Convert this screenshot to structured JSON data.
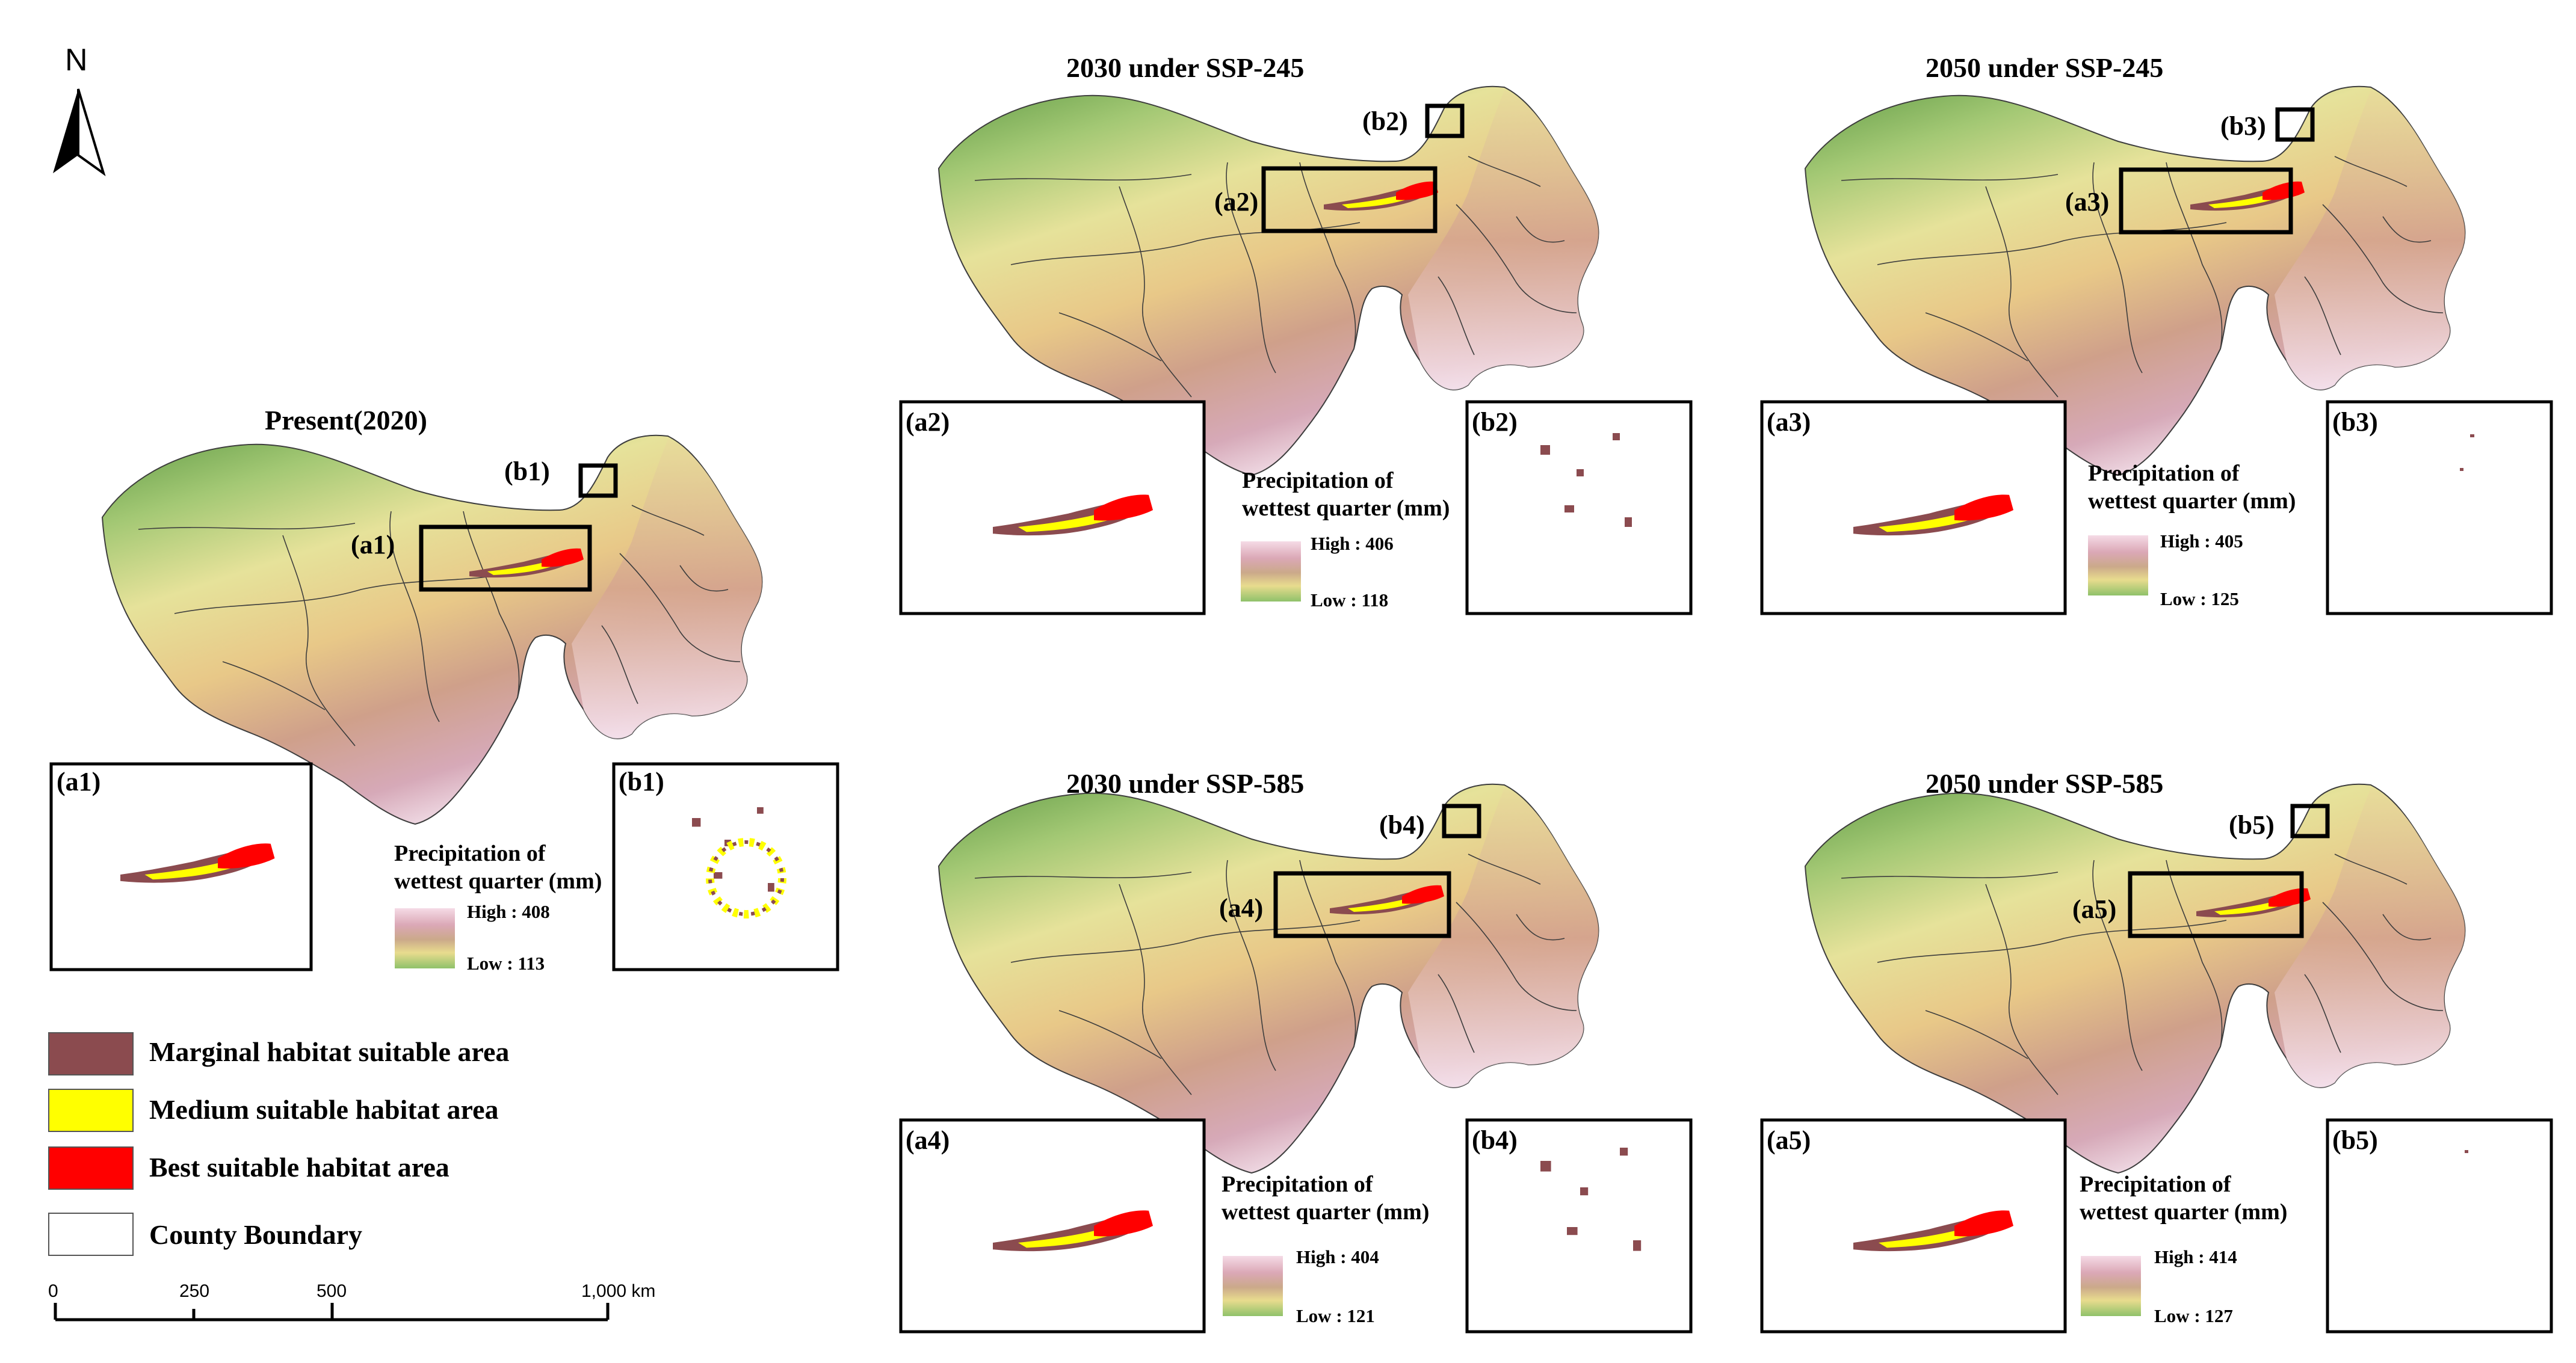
{
  "north_arrow": {
    "label": "N"
  },
  "panels": [
    {
      "title": "Present(2020)",
      "tags": [
        "(a1)",
        "(b1)"
      ],
      "legend": {
        "title_line1": "Precipitation of",
        "title_line2": "wettest quarter (mm)",
        "high": "High : 408",
        "low": "Low : 113"
      }
    },
    {
      "title": "2030 under SSP-245",
      "tags": [
        "(a2)",
        "(b2)"
      ],
      "legend": {
        "title_line1": "Precipitation of",
        "title_line2": "wettest quarter (mm)",
        "high": "High : 406",
        "low": "Low : 118"
      }
    },
    {
      "title": "2050 under SSP-245",
      "tags": [
        "(a3)",
        "(b3)"
      ],
      "legend": {
        "title_line1": "Precipitation of",
        "title_line2": "wettest quarter (mm)",
        "high": "High : 405",
        "low": "Low : 125"
      }
    },
    {
      "title": "2030 under SSP-585",
      "tags": [
        "(a4)",
        "(b4)"
      ],
      "legend": {
        "title_line1": "Precipitation of",
        "title_line2": "wettest quarter (mm)",
        "high": "High : 404",
        "low": "Low : 121"
      }
    },
    {
      "title": "2050 under SSP-585",
      "tags": [
        "(a5)",
        "(b5)"
      ],
      "legend": {
        "title_line1": "Precipitation of",
        "title_line2": "wettest quarter (mm)",
        "high": "High : 414",
        "low": "Low : 127"
      }
    }
  ],
  "habitat_legend": [
    {
      "label": "Marginal habitat suitable area",
      "color": "#8b4b4f"
    },
    {
      "label": "Medium suitable habitat area",
      "color": "#ffff00"
    },
    {
      "label": "Best suitable habitat area",
      "color": "#ff0000"
    },
    {
      "label": "County Boundary",
      "color": "#ffffff"
    }
  ],
  "scale_bar": {
    "ticks": [
      "0",
      "250",
      "500",
      "1,000 km"
    ]
  },
  "colors": {
    "ramp_high": "#f5dbe6",
    "ramp_mid": "#cba98a",
    "ramp_low": "#8fc26a",
    "marginal": "#8b4b4f",
    "medium": "#ffff00",
    "best": "#ff0000"
  }
}
